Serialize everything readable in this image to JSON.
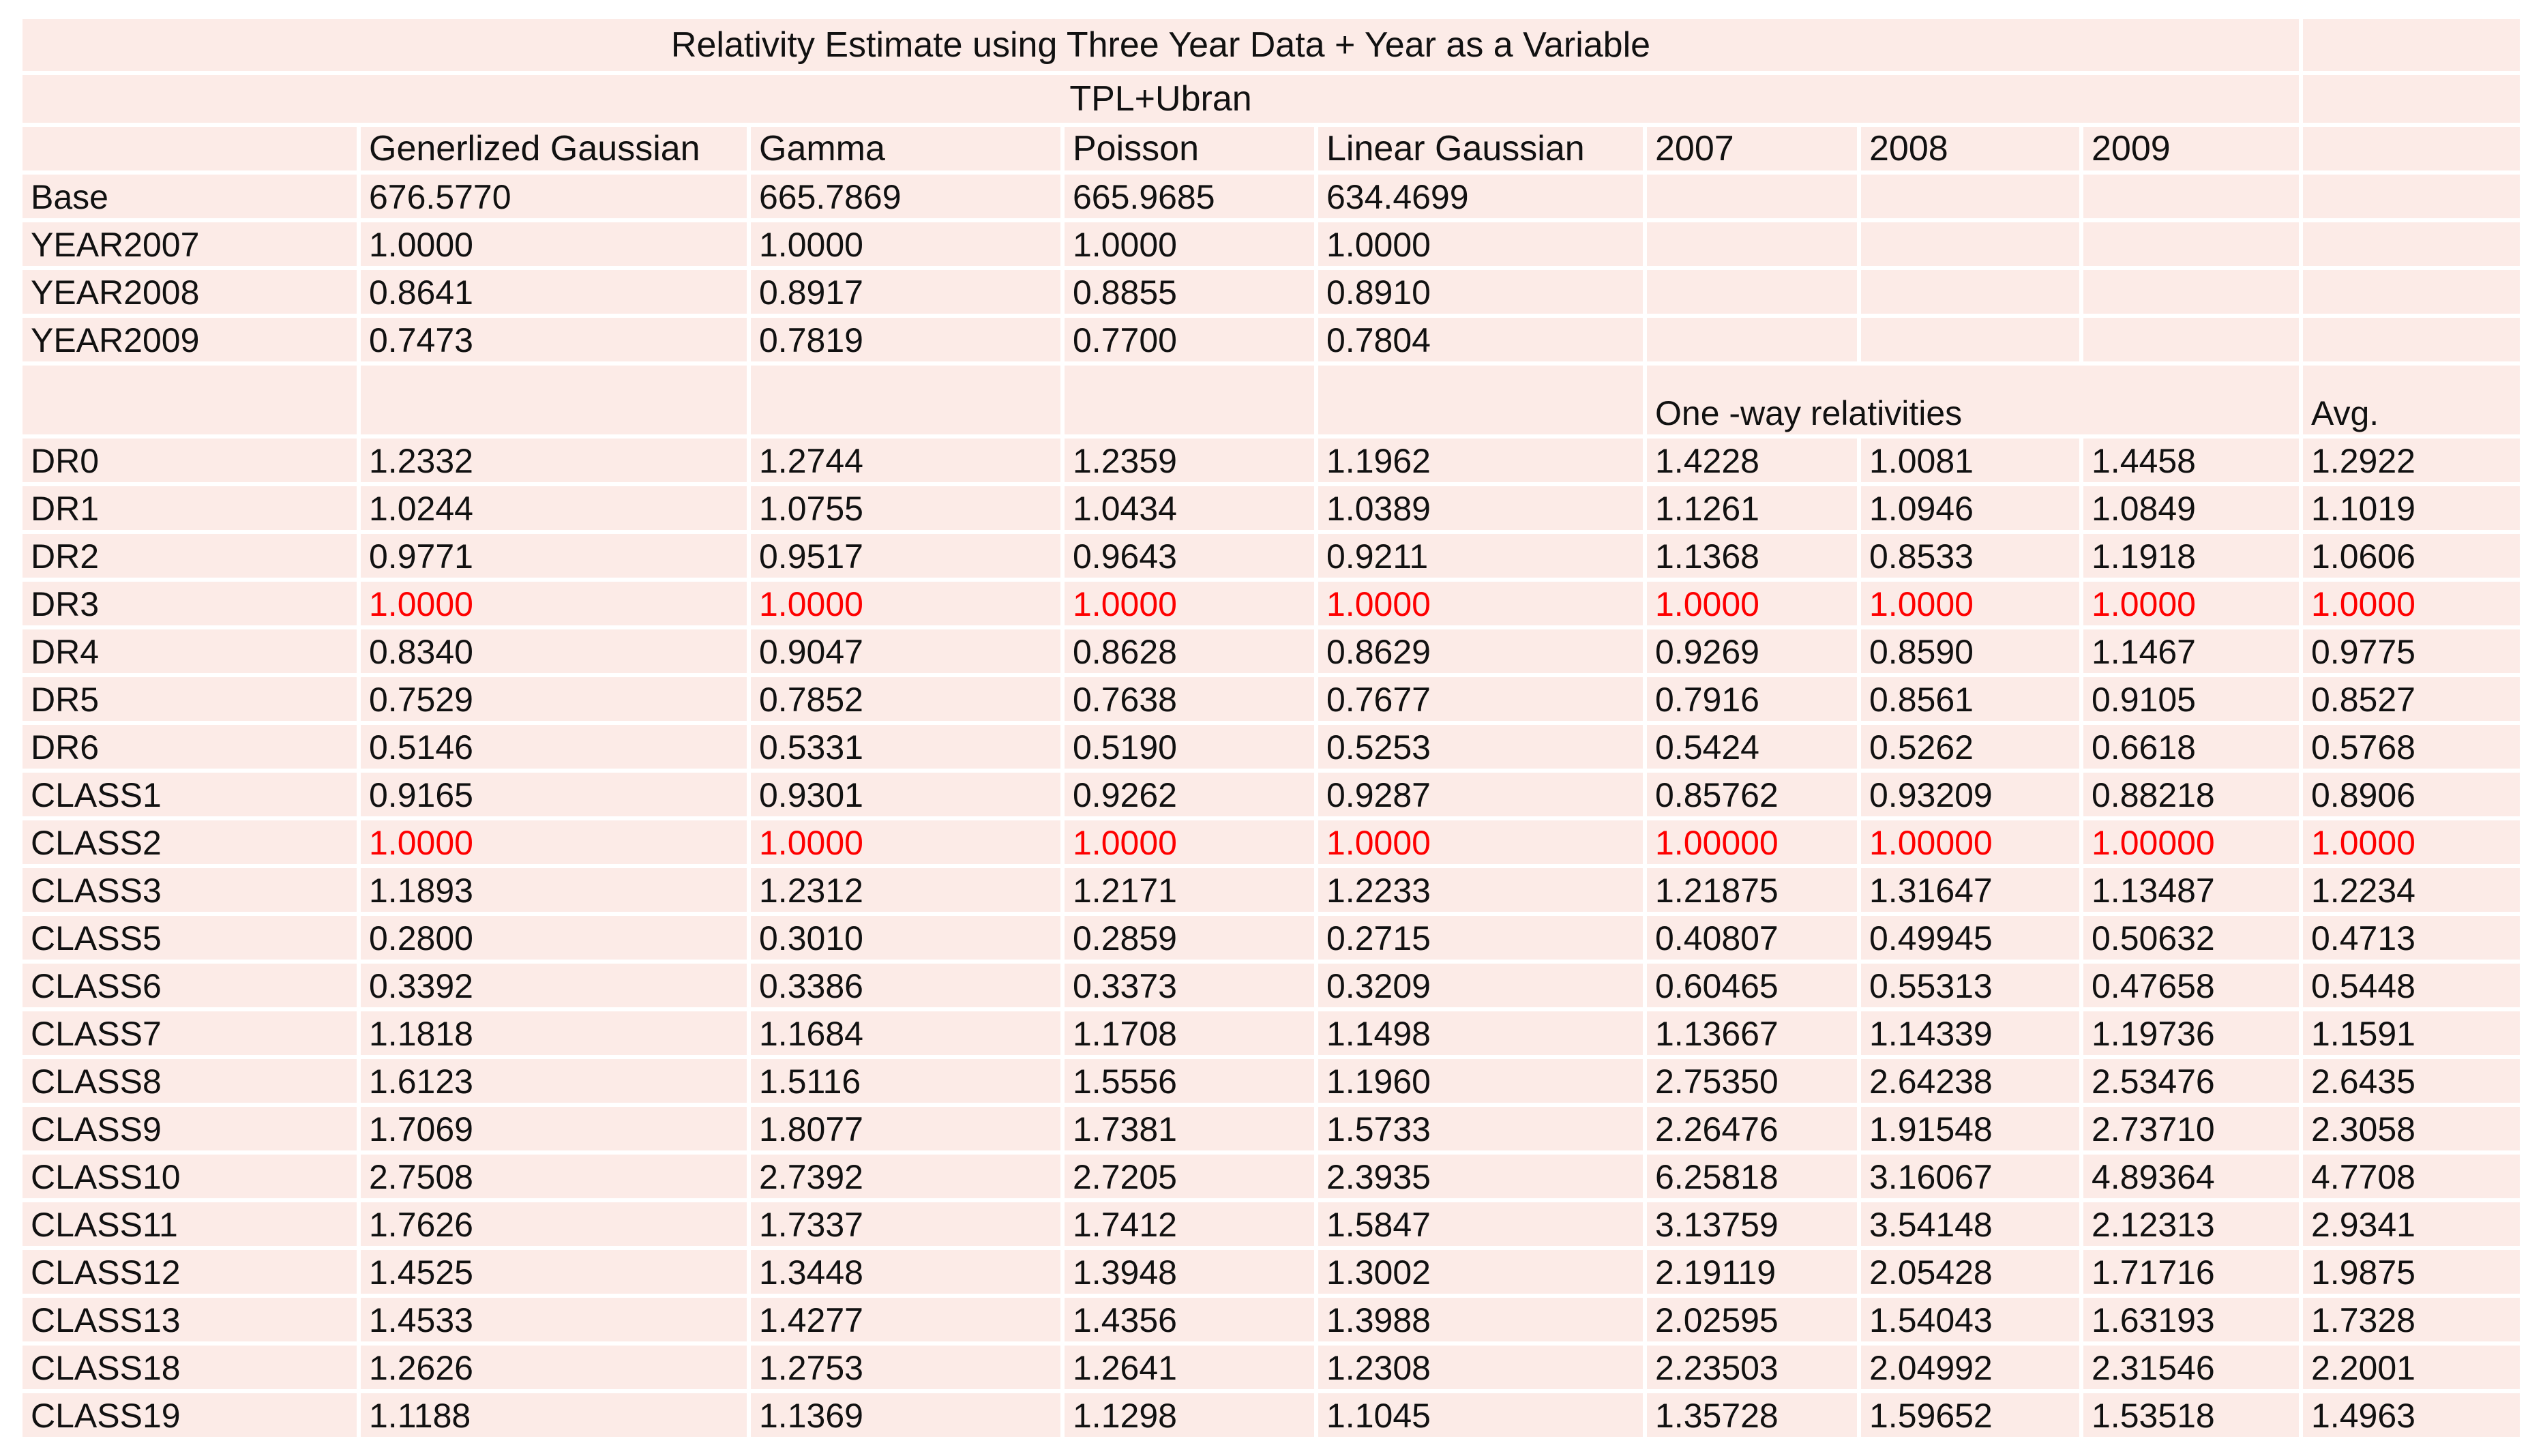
{
  "style": {
    "page_bg": "#ffffff",
    "grid_color": "#ffffff",
    "cell_bg": "#fcebe7",
    "text_color": "#111111",
    "highlight_color": "#fe0000"
  },
  "chart_data": {
    "type": "table",
    "title": "Relativity Estimate using Three Year Data + Year as a Variable",
    "subtitle": "TPL+Ubran",
    "columns": [
      "Generlized Gaussian",
      "Gamma",
      "Poisson",
      "Linear Gaussian",
      "2007",
      "2008",
      "2009"
    ],
    "oneway_header": "One -way relativities",
    "avg_header": "Avg.",
    "base_rows": [
      {
        "label": "Base",
        "values": [
          "676.5770",
          "665.7869",
          "665.9685",
          "634.4699"
        ]
      },
      {
        "label": "YEAR2007",
        "values": [
          "1.0000",
          "1.0000",
          "1.0000",
          "1.0000"
        ]
      },
      {
        "label": "YEAR2008",
        "values": [
          "0.8641",
          "0.8917",
          "0.8855",
          "0.8910"
        ]
      },
      {
        "label": "YEAR2009",
        "values": [
          "0.7473",
          "0.7819",
          "0.7700",
          "0.7804"
        ]
      }
    ],
    "relativity_rows": [
      {
        "label": "DR0",
        "highlight": false,
        "values": [
          "1.2332",
          "1.2744",
          "1.2359",
          "1.1962",
          "1.4228",
          "1.0081",
          "1.4458",
          "1.2922"
        ]
      },
      {
        "label": "DR1",
        "highlight": false,
        "values": [
          "1.0244",
          "1.0755",
          "1.0434",
          "1.0389",
          "1.1261",
          "1.0946",
          "1.0849",
          "1.1019"
        ]
      },
      {
        "label": "DR2",
        "highlight": false,
        "values": [
          "0.9771",
          "0.9517",
          "0.9643",
          "0.9211",
          "1.1368",
          "0.8533",
          "1.1918",
          "1.0606"
        ]
      },
      {
        "label": "DR3",
        "highlight": true,
        "values": [
          "1.0000",
          "1.0000",
          "1.0000",
          "1.0000",
          "1.0000",
          "1.0000",
          "1.0000",
          "1.0000"
        ]
      },
      {
        "label": "DR4",
        "highlight": false,
        "values": [
          "0.8340",
          "0.9047",
          "0.8628",
          "0.8629",
          "0.9269",
          "0.8590",
          "1.1467",
          "0.9775"
        ]
      },
      {
        "label": "DR5",
        "highlight": false,
        "values": [
          "0.7529",
          "0.7852",
          "0.7638",
          "0.7677",
          "0.7916",
          "0.8561",
          "0.9105",
          "0.8527"
        ]
      },
      {
        "label": "DR6",
        "highlight": false,
        "values": [
          "0.5146",
          "0.5331",
          "0.5190",
          "0.5253",
          "0.5424",
          "0.5262",
          "0.6618",
          "0.5768"
        ]
      },
      {
        "label": "CLASS1",
        "highlight": false,
        "values": [
          "0.9165",
          "0.9301",
          "0.9262",
          "0.9287",
          "0.85762",
          "0.93209",
          "0.88218",
          "0.8906"
        ]
      },
      {
        "label": "CLASS2",
        "highlight": true,
        "values": [
          "1.0000",
          "1.0000",
          "1.0000",
          "1.0000",
          "1.00000",
          "1.00000",
          "1.00000",
          "1.0000"
        ]
      },
      {
        "label": "CLASS3",
        "highlight": false,
        "values": [
          "1.1893",
          "1.2312",
          "1.2171",
          "1.2233",
          "1.21875",
          "1.31647",
          "1.13487",
          "1.2234"
        ]
      },
      {
        "label": "CLASS5",
        "highlight": false,
        "values": [
          "0.2800",
          "0.3010",
          "0.2859",
          "0.2715",
          "0.40807",
          "0.49945",
          "0.50632",
          "0.4713"
        ]
      },
      {
        "label": "CLASS6",
        "highlight": false,
        "values": [
          "0.3392",
          "0.3386",
          "0.3373",
          "0.3209",
          "0.60465",
          "0.55313",
          "0.47658",
          "0.5448"
        ]
      },
      {
        "label": "CLASS7",
        "highlight": false,
        "values": [
          "1.1818",
          "1.1684",
          "1.1708",
          "1.1498",
          "1.13667",
          "1.14339",
          "1.19736",
          "1.1591"
        ]
      },
      {
        "label": "CLASS8",
        "highlight": false,
        "values": [
          "1.6123",
          "1.5116",
          "1.5556",
          "1.1960",
          "2.75350",
          "2.64238",
          "2.53476",
          "2.6435"
        ]
      },
      {
        "label": "CLASS9",
        "highlight": false,
        "values": [
          "1.7069",
          "1.8077",
          "1.7381",
          "1.5733",
          "2.26476",
          "1.91548",
          "2.73710",
          "2.3058"
        ]
      },
      {
        "label": "CLASS10",
        "highlight": false,
        "values": [
          "2.7508",
          "2.7392",
          "2.7205",
          "2.3935",
          "6.25818",
          "3.16067",
          "4.89364",
          "4.7708"
        ]
      },
      {
        "label": "CLASS11",
        "highlight": false,
        "values": [
          "1.7626",
          "1.7337",
          "1.7412",
          "1.5847",
          "3.13759",
          "3.54148",
          "2.12313",
          "2.9341"
        ]
      },
      {
        "label": "CLASS12",
        "highlight": false,
        "values": [
          "1.4525",
          "1.3448",
          "1.3948",
          "1.3002",
          "2.19119",
          "2.05428",
          "1.71716",
          "1.9875"
        ]
      },
      {
        "label": "CLASS13",
        "highlight": false,
        "values": [
          "1.4533",
          "1.4277",
          "1.4356",
          "1.3988",
          "2.02595",
          "1.54043",
          "1.63193",
          "1.7328"
        ]
      },
      {
        "label": "CLASS18",
        "highlight": false,
        "values": [
          "1.2626",
          "1.2753",
          "1.2641",
          "1.2308",
          "2.23503",
          "2.04992",
          "2.31546",
          "2.2001"
        ]
      },
      {
        "label": "CLASS19",
        "highlight": false,
        "values": [
          "1.1188",
          "1.1369",
          "1.1298",
          "1.1045",
          "1.35728",
          "1.59652",
          "1.53518",
          "1.4963"
        ]
      }
    ]
  }
}
